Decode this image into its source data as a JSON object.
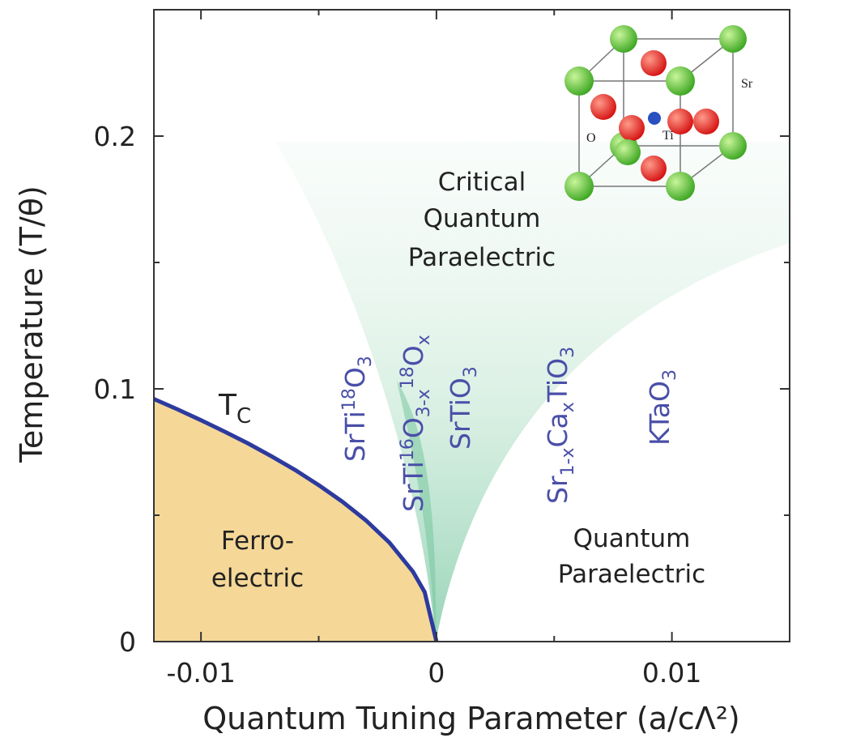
{
  "chart_data": {
    "type": "line",
    "x_label": "Quantum Tuning Parameter (a/cΛ²)",
    "y_label": "Temperature (T/θ)",
    "xlim": [
      -0.012,
      0.015
    ],
    "ylim": [
      0,
      0.25
    ],
    "xticks": [
      -0.01,
      0,
      0.01
    ],
    "yticks": [
      0,
      0.1,
      0.2
    ],
    "xminorticks": [
      -0.005,
      0.005
    ],
    "yminorticks": [
      0.05,
      0.15
    ],
    "x": [
      -0.012,
      -0.011,
      -0.01,
      -0.009,
      -0.008,
      -0.007,
      -0.006,
      -0.005,
      -0.004,
      -0.003,
      -0.002,
      -0.001,
      -0.0005,
      0
    ],
    "series": [
      {
        "color": "#2d3a9e",
        "fill": "#f5d898",
        "values": [
          0.096,
          0.0919,
          0.0876,
          0.0831,
          0.0784,
          0.0733,
          0.0679,
          0.0619,
          0.0554,
          0.048,
          0.0392,
          0.0277,
          0.0196,
          0
        ]
      }
    ],
    "annotations": {
      "tc": [
        "T",
        "C"
      ],
      "ferroelectric": [
        "Ferro-",
        "electric"
      ],
      "critical": [
        "Critical",
        "Quantum",
        "Paraelectric"
      ],
      "quantum": [
        "Quantum",
        "Paraelectric"
      ]
    },
    "materials": {
      "srti18o3": [
        "SrTi",
        "18",
        "O",
        "3"
      ],
      "srti16o3x18ox": [
        "SrTi",
        "16",
        "O",
        "3-x",
        "18",
        "O",
        "x"
      ],
      "srtio3": [
        "SrTiO",
        "3"
      ],
      "srcatio3": [
        "Sr",
        "1-x",
        "Ca",
        "x",
        "TiO",
        "3"
      ],
      "ktao3": [
        "KTaO",
        "3"
      ]
    },
    "inset": {
      "labels": [
        "Sr",
        "O",
        "Ti"
      ]
    }
  }
}
